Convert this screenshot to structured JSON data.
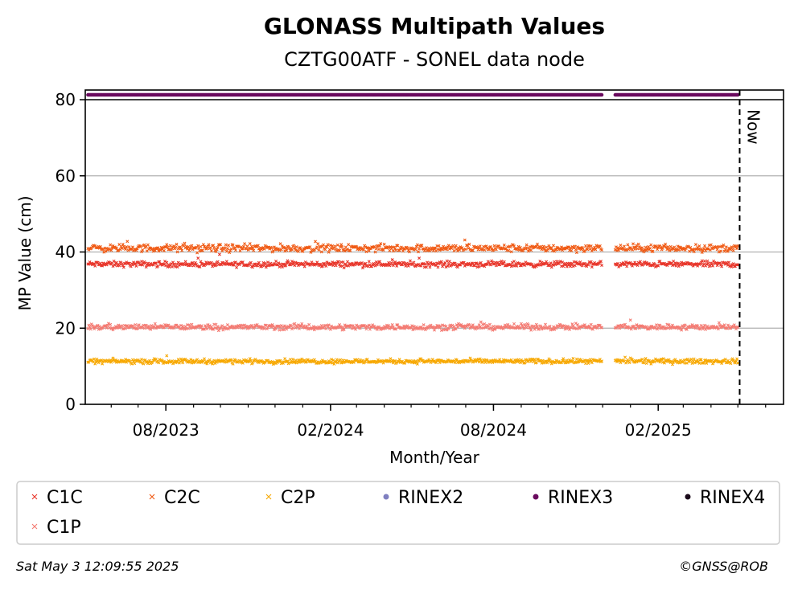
{
  "chart_data": {
    "type": "scatter",
    "title": "GLONASS Multipath Values",
    "subtitle": "CZTG00ATF - SONEL data node",
    "xlabel": "Month/Year",
    "ylabel": "MP Value (cm)",
    "ylim": [
      0,
      80
    ],
    "xlim": [
      "2023-05-03",
      "2025-06-21"
    ],
    "y_ticks": [
      0,
      20,
      40,
      60,
      80
    ],
    "x_ticks": [
      {
        "date": "2023-08-01",
        "label": "08/2023"
      },
      {
        "date": "2024-02-01",
        "label": "02/2024"
      },
      {
        "date": "2024-08-01",
        "label": "08/2024"
      },
      {
        "date": "2025-02-01",
        "label": "02/2025"
      }
    ],
    "grid": "horizontal",
    "now_date": "2025-05-03",
    "now_label": "Now",
    "data_gaps": [
      [
        "2024-12-01",
        "2024-12-14"
      ]
    ],
    "series": [
      {
        "name": "C1C",
        "marker": "x",
        "color": "#e8362b",
        "mean": 36.8,
        "spread": 0.6,
        "start": "2023-05-06",
        "end": "2025-05-01"
      },
      {
        "name": "C2C",
        "marker": "x",
        "color": "#f05a14",
        "mean": 41.0,
        "spread": 0.8,
        "start": "2023-05-06",
        "end": "2025-05-01"
      },
      {
        "name": "C2P",
        "marker": "x",
        "color": "#f7a800",
        "mean": 11.3,
        "spread": 0.5,
        "start": "2023-05-06",
        "end": "2025-05-01"
      },
      {
        "name": "C1P",
        "marker": "x",
        "color": "#f47a72",
        "mean": 20.3,
        "spread": 0.6,
        "start": "2023-05-06",
        "end": "2025-05-01"
      },
      {
        "name": "RINEX2",
        "marker": "o",
        "color": "#7f7fc0",
        "values": []
      },
      {
        "name": "RINEX3",
        "marker": "o",
        "color": "#6a0a5e",
        "start": "2023-05-06",
        "end": "2025-05-01"
      },
      {
        "name": "RINEX4",
        "marker": "o",
        "color": "#1a0a1a",
        "values": []
      }
    ],
    "legend": {
      "placement": "bottom",
      "entries": [
        {
          "label": "C1C",
          "marker": "x",
          "color": "#e8362b"
        },
        {
          "label": "C2C",
          "marker": "x",
          "color": "#f05a14"
        },
        {
          "label": "C2P",
          "marker": "x",
          "color": "#f7a800"
        },
        {
          "label": "RINEX2",
          "marker": "o",
          "color": "#7f7fc0"
        },
        {
          "label": "RINEX3",
          "marker": "o",
          "color": "#6a0a5e"
        },
        {
          "label": "RINEX4",
          "marker": "o",
          "color": "#1a0a1a"
        },
        {
          "label": "C1P",
          "marker": "x",
          "color": "#f47a72"
        }
      ]
    }
  },
  "footer": {
    "timestamp": "Sat May  3 12:09:55 2025",
    "credit": "©GNSS@ROB"
  }
}
